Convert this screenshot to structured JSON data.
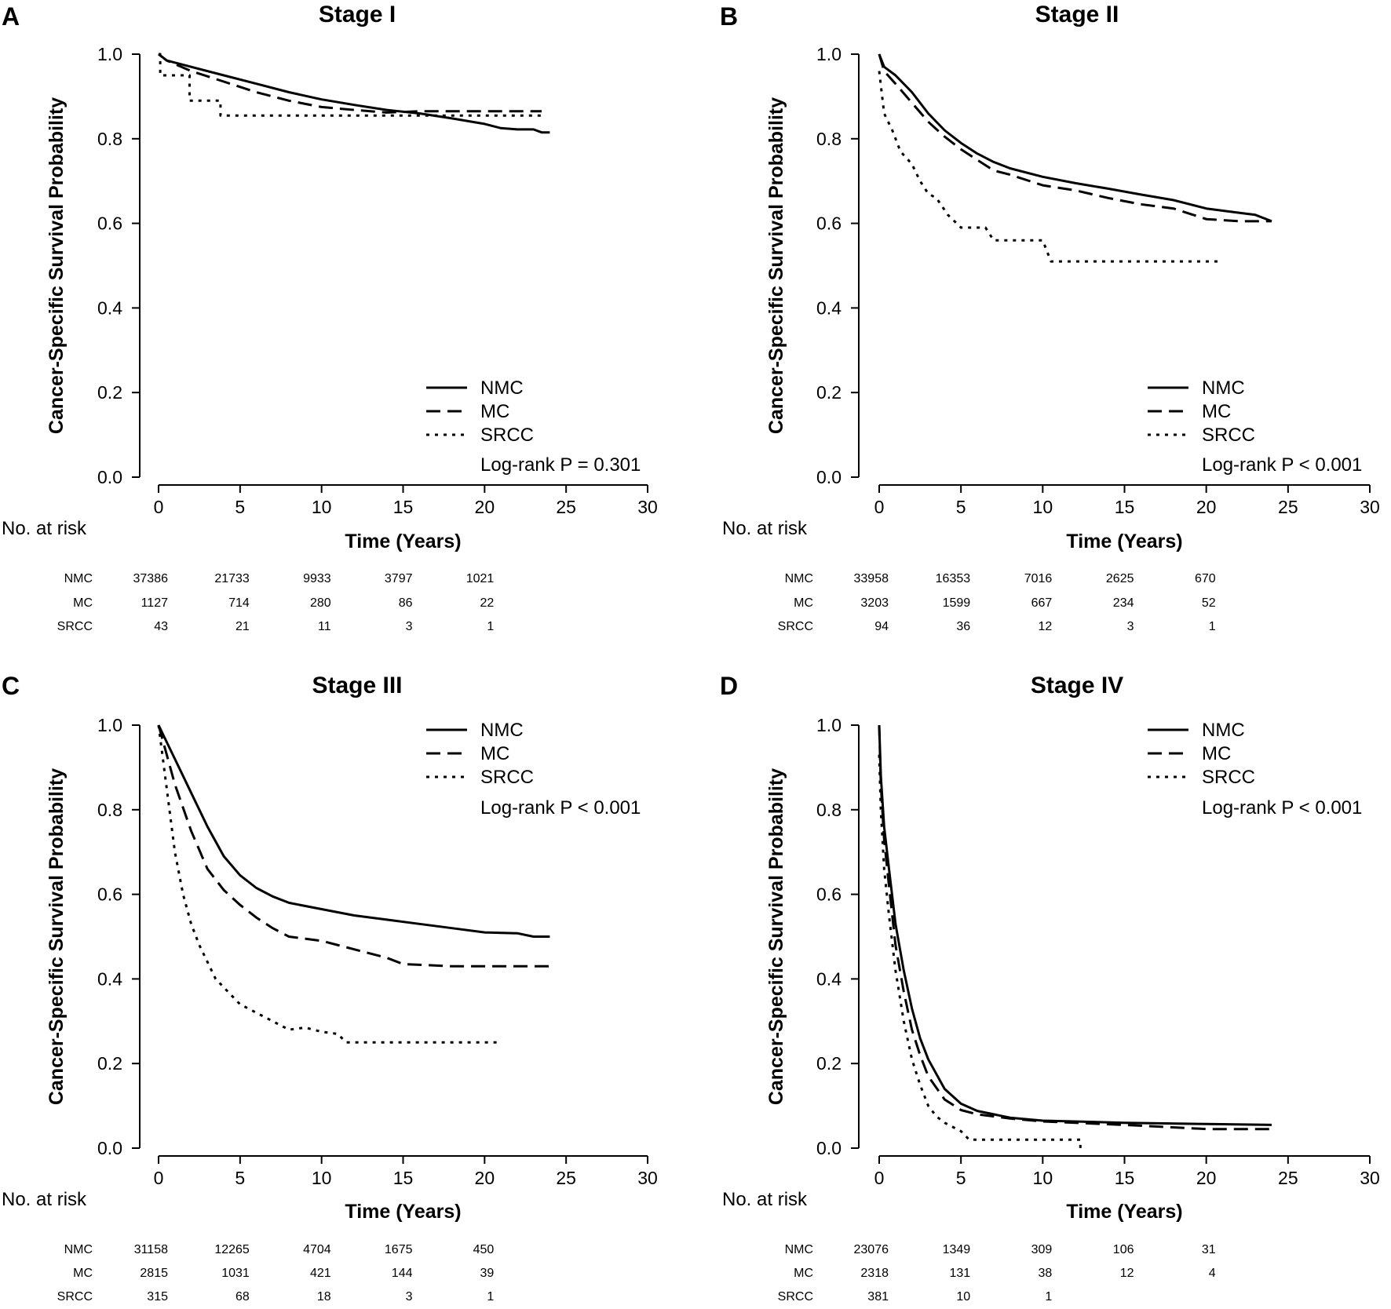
{
  "chart_data": [
    {
      "type": "line",
      "panel_letter": "A",
      "title": "Stage I",
      "xlabel": "Time (Years)",
      "ylabel": "Cancer-Specific Survival Probability",
      "xlim": [
        0,
        30
      ],
      "ylim": [
        0,
        1
      ],
      "x_ticks": [
        0,
        5,
        10,
        15,
        20,
        25,
        30
      ],
      "y_ticks": [
        "0.0",
        "0.2",
        "0.4",
        "0.6",
        "0.8",
        "1.0"
      ],
      "legend_position": "bottom-right",
      "pvalue_text": "Log-rank P = 0.301",
      "series": [
        {
          "name": "NMC",
          "dash": "solid",
          "x": [
            0,
            0.5,
            2,
            4,
            6,
            8,
            10,
            12,
            14,
            16,
            18,
            20,
            21,
            22,
            23,
            23.5,
            24
          ],
          "y": [
            1.0,
            0.985,
            0.97,
            0.95,
            0.93,
            0.91,
            0.893,
            0.88,
            0.868,
            0.86,
            0.848,
            0.835,
            0.825,
            0.822,
            0.822,
            0.815,
            0.815
          ]
        },
        {
          "name": "MC",
          "dash": "dashed",
          "x": [
            0,
            0.5,
            2,
            4,
            6,
            8,
            10,
            12,
            14,
            16,
            18,
            20,
            22,
            23.5
          ],
          "y": [
            1.0,
            0.985,
            0.96,
            0.935,
            0.91,
            0.89,
            0.875,
            0.868,
            0.862,
            0.865,
            0.865,
            0.865,
            0.865,
            0.865
          ]
        },
        {
          "name": "SRCC",
          "dash": "dotted",
          "x": [
            0,
            0.1,
            0.1,
            1.9,
            1.9,
            3.8,
            3.8,
            23.5
          ],
          "y": [
            1.0,
            1.0,
            0.95,
            0.95,
            0.89,
            0.89,
            0.855,
            0.855
          ]
        }
      ],
      "risk_table": {
        "heading": "No. at risk",
        "times": [
          0,
          5,
          10,
          15,
          20
        ],
        "rows": [
          {
            "group": "NMC",
            "values": [
              "37386",
              "21733",
              "9933",
              "3797",
              "1021"
            ]
          },
          {
            "group": "MC",
            "values": [
              "1127",
              "714",
              "280",
              "86",
              "22"
            ]
          },
          {
            "group": "SRCC",
            "values": [
              "43",
              "21",
              "11",
              "3",
              "1"
            ]
          }
        ]
      }
    },
    {
      "type": "line",
      "panel_letter": "B",
      "title": "Stage II",
      "xlabel": "Time (Years)",
      "ylabel": "Cancer-Specific Survival Probability",
      "xlim": [
        0,
        30
      ],
      "ylim": [
        0,
        1
      ],
      "x_ticks": [
        0,
        5,
        10,
        15,
        20,
        25,
        30
      ],
      "y_ticks": [
        "0.0",
        "0.2",
        "0.4",
        "0.6",
        "0.8",
        "1.0"
      ],
      "legend_position": "bottom-right",
      "pvalue_text": "Log-rank P < 0.001",
      "series": [
        {
          "name": "NMC",
          "dash": "solid",
          "x": [
            0,
            0.3,
            1,
            2,
            3,
            4,
            5,
            6,
            7,
            8,
            10,
            12,
            14,
            16,
            18,
            20,
            22,
            23,
            24
          ],
          "y": [
            1.0,
            0.97,
            0.95,
            0.91,
            0.86,
            0.82,
            0.79,
            0.765,
            0.745,
            0.73,
            0.71,
            0.695,
            0.682,
            0.668,
            0.655,
            0.635,
            0.625,
            0.62,
            0.605
          ]
        },
        {
          "name": "MC",
          "dash": "dashed",
          "x": [
            0,
            0.3,
            1,
            2,
            3,
            4,
            5,
            6,
            7,
            8,
            10,
            12,
            14,
            16,
            18,
            20,
            22,
            24
          ],
          "y": [
            1.0,
            0.96,
            0.93,
            0.885,
            0.84,
            0.805,
            0.775,
            0.75,
            0.725,
            0.715,
            0.69,
            0.678,
            0.66,
            0.645,
            0.635,
            0.61,
            0.605,
            0.605
          ]
        },
        {
          "name": "SRCC",
          "dash": "dotted",
          "x": [
            0,
            0.3,
            0.8,
            1.3,
            2,
            2.5,
            3,
            3.5,
            4.2,
            5,
            6.5,
            7,
            10,
            10.5,
            21
          ],
          "y": [
            0.96,
            0.86,
            0.82,
            0.77,
            0.74,
            0.7,
            0.67,
            0.66,
            0.62,
            0.59,
            0.59,
            0.56,
            0.56,
            0.51,
            0.51
          ]
        }
      ],
      "risk_table": {
        "heading": "No. at risk",
        "times": [
          0,
          5,
          10,
          15,
          20
        ],
        "rows": [
          {
            "group": "NMC",
            "values": [
              "33958",
              "16353",
              "7016",
              "2625",
              "670"
            ]
          },
          {
            "group": "MC",
            "values": [
              "3203",
              "1599",
              "667",
              "234",
              "52"
            ]
          },
          {
            "group": "SRCC",
            "values": [
              "94",
              "36",
              "12",
              "3",
              "1"
            ]
          }
        ]
      }
    },
    {
      "type": "line",
      "panel_letter": "C",
      "title": "Stage III",
      "xlabel": "Time (Years)",
      "ylabel": "Cancer-Specific Survival Probability",
      "xlim": [
        0,
        30
      ],
      "ylim": [
        0,
        1
      ],
      "x_ticks": [
        0,
        5,
        10,
        15,
        20,
        25,
        30
      ],
      "y_ticks": [
        "0.0",
        "0.2",
        "0.4",
        "0.6",
        "0.8",
        "1.0"
      ],
      "legend_position": "top-right",
      "pvalue_text": "Log-rank P < 0.001",
      "series": [
        {
          "name": "NMC",
          "dash": "solid",
          "x": [
            0,
            0.5,
            1,
            2,
            3,
            4,
            5,
            6,
            7,
            8,
            10,
            12,
            14,
            16,
            18,
            20,
            22,
            23,
            24
          ],
          "y": [
            1.0,
            0.96,
            0.92,
            0.84,
            0.76,
            0.69,
            0.645,
            0.615,
            0.595,
            0.58,
            0.565,
            0.55,
            0.54,
            0.53,
            0.52,
            0.51,
            0.508,
            0.5,
            0.5
          ]
        },
        {
          "name": "MC",
          "dash": "dashed",
          "x": [
            0,
            0.5,
            1,
            2,
            3,
            4,
            5,
            6,
            7,
            8,
            10,
            12,
            14,
            15,
            18,
            20,
            24
          ],
          "y": [
            1.0,
            0.93,
            0.86,
            0.75,
            0.66,
            0.61,
            0.575,
            0.545,
            0.52,
            0.5,
            0.49,
            0.47,
            0.45,
            0.435,
            0.43,
            0.43,
            0.43
          ]
        },
        {
          "name": "SRCC",
          "dash": "dotted",
          "x": [
            0,
            0.5,
            1,
            1.5,
            2,
            2.5,
            3,
            3.5,
            4,
            5,
            6,
            7,
            8,
            9,
            10,
            11,
            11.5,
            21
          ],
          "y": [
            1.0,
            0.85,
            0.7,
            0.6,
            0.53,
            0.48,
            0.44,
            0.4,
            0.38,
            0.34,
            0.32,
            0.3,
            0.28,
            0.285,
            0.275,
            0.27,
            0.25,
            0.25
          ]
        }
      ],
      "risk_table": {
        "heading": "No. at risk",
        "times": [
          0,
          5,
          10,
          15,
          20
        ],
        "rows": [
          {
            "group": "NMC",
            "values": [
              "31158",
              "12265",
              "4704",
              "1675",
              "450"
            ]
          },
          {
            "group": "MC",
            "values": [
              "2815",
              "1031",
              "421",
              "144",
              "39"
            ]
          },
          {
            "group": "SRCC",
            "values": [
              "315",
              "68",
              "18",
              "3",
              "1"
            ]
          }
        ]
      }
    },
    {
      "type": "line",
      "panel_letter": "D",
      "title": "Stage IV",
      "xlabel": "Time (Years)",
      "ylabel": "Cancer-Specific Survival Probability",
      "xlim": [
        0,
        30
      ],
      "ylim": [
        0,
        1
      ],
      "x_ticks": [
        0,
        5,
        10,
        15,
        20,
        25,
        30
      ],
      "y_ticks": [
        "0.0",
        "0.2",
        "0.4",
        "0.6",
        "0.8",
        "1.0"
      ],
      "legend_position": "top-right",
      "pvalue_text": "Log-rank P < 0.001",
      "series": [
        {
          "name": "NMC",
          "dash": "solid",
          "x": [
            0,
            0.1,
            0.3,
            0.6,
            1,
            1.5,
            2,
            2.5,
            3,
            4,
            5,
            6,
            8,
            10,
            15,
            20,
            24
          ],
          "y": [
            1.0,
            0.88,
            0.76,
            0.66,
            0.53,
            0.42,
            0.33,
            0.26,
            0.21,
            0.14,
            0.105,
            0.088,
            0.072,
            0.065,
            0.06,
            0.057,
            0.055
          ]
        },
        {
          "name": "MC",
          "dash": "dashed",
          "x": [
            0,
            0.1,
            0.3,
            0.6,
            1,
            1.5,
            2,
            2.5,
            3,
            4,
            5,
            6,
            8,
            10,
            15,
            20,
            24
          ],
          "y": [
            1.0,
            0.86,
            0.73,
            0.62,
            0.48,
            0.37,
            0.28,
            0.22,
            0.17,
            0.115,
            0.09,
            0.08,
            0.07,
            0.063,
            0.055,
            0.045,
            0.045
          ]
        },
        {
          "name": "SRCC",
          "dash": "dotted",
          "x": [
            0,
            0.1,
            0.3,
            0.6,
            1,
            1.5,
            2,
            2.5,
            3,
            3.5,
            4,
            5,
            5.5,
            6,
            12.3,
            12.3
          ],
          "y": [
            0.93,
            0.8,
            0.66,
            0.55,
            0.42,
            0.3,
            0.21,
            0.15,
            0.1,
            0.075,
            0.06,
            0.04,
            0.02,
            0.02,
            0.02,
            0.0
          ]
        }
      ],
      "risk_table": {
        "heading": "No. at risk",
        "times": [
          0,
          5,
          10,
          15,
          20
        ],
        "rows": [
          {
            "group": "NMC",
            "values": [
              "23076",
              "1349",
              "309",
              "106",
              "31"
            ]
          },
          {
            "group": "MC",
            "values": [
              "2318",
              "131",
              "38",
              "12",
              "4"
            ]
          },
          {
            "group": "SRCC",
            "values": [
              "381",
              "10",
              "1",
              "",
              ""
            ]
          }
        ]
      }
    }
  ]
}
